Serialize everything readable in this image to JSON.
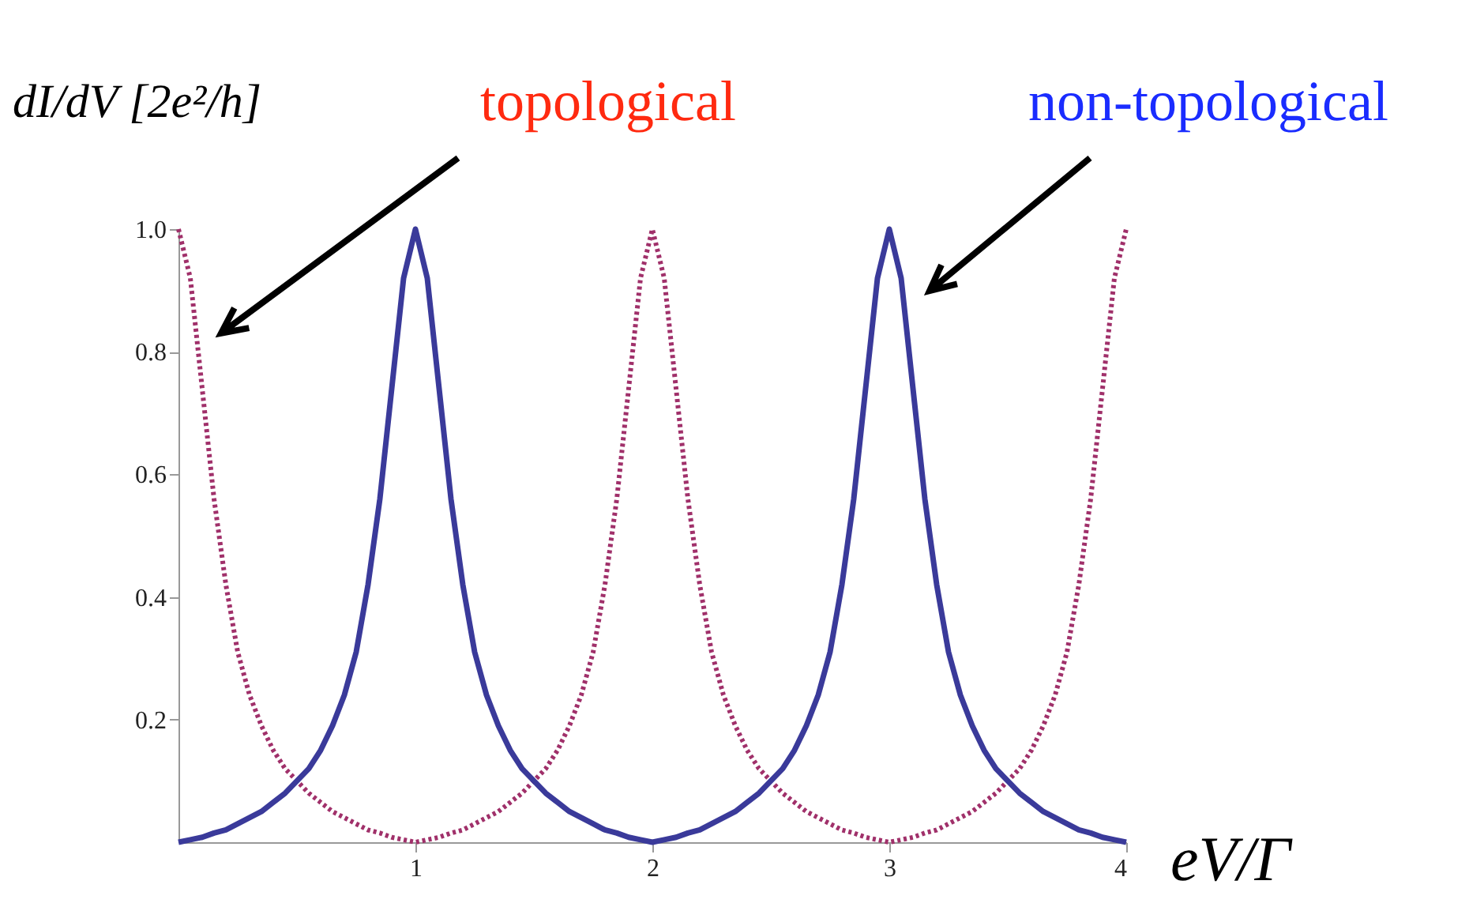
{
  "chart_data": {
    "type": "line",
    "ylabel": "dI/dV [2e²/h]",
    "xlabel": "eV/Γ",
    "x": [
      0,
      0.05,
      0.1,
      0.15,
      0.2,
      0.25,
      0.3,
      0.35,
      0.4,
      0.45,
      0.5,
      0.55,
      0.6,
      0.65,
      0.7,
      0.75,
      0.8,
      0.85,
      0.9,
      0.95,
      1,
      1.05,
      1.1,
      1.15,
      1.2,
      1.25,
      1.3,
      1.35,
      1.4,
      1.45,
      1.5,
      1.55,
      1.6,
      1.65,
      1.7,
      1.75,
      1.8,
      1.85,
      1.9,
      1.95,
      2,
      2.05,
      2.1,
      2.15,
      2.2,
      2.25,
      2.3,
      2.35,
      2.4,
      2.45,
      2.5,
      2.55,
      2.6,
      2.65,
      2.7,
      2.75,
      2.8,
      2.85,
      2.9,
      2.95,
      3,
      3.05,
      3.1,
      3.15,
      3.2,
      3.25,
      3.3,
      3.35,
      3.4,
      3.45,
      3.5,
      3.55,
      3.6,
      3.65,
      3.7,
      3.75,
      3.8,
      3.85,
      3.9,
      3.95,
      4
    ],
    "series": [
      {
        "name": "topological",
        "color": "#a0306a",
        "line_style": "dotted",
        "values": [
          1,
          0.92,
          0.74,
          0.56,
          0.42,
          0.31,
          0.24,
          0.19,
          0.15,
          0.12,
          0.1,
          0.08,
          0.065,
          0.05,
          0.04,
          0.03,
          0.02,
          0.015,
          0.008,
          0.004,
          0,
          0.004,
          0.008,
          0.015,
          0.02,
          0.03,
          0.04,
          0.05,
          0.065,
          0.08,
          0.1,
          0.12,
          0.15,
          0.19,
          0.24,
          0.31,
          0.42,
          0.56,
          0.74,
          0.92,
          1,
          0.92,
          0.74,
          0.56,
          0.42,
          0.31,
          0.24,
          0.19,
          0.15,
          0.12,
          0.1,
          0.08,
          0.065,
          0.05,
          0.04,
          0.03,
          0.02,
          0.015,
          0.008,
          0.004,
          0,
          0.004,
          0.008,
          0.015,
          0.02,
          0.03,
          0.04,
          0.05,
          0.065,
          0.08,
          0.1,
          0.12,
          0.15,
          0.19,
          0.24,
          0.31,
          0.42,
          0.56,
          0.74,
          0.92,
          1
        ]
      },
      {
        "name": "non-topological",
        "color": "#3a3a9a",
        "line_style": "solid",
        "values": [
          0,
          0.004,
          0.008,
          0.015,
          0.02,
          0.03,
          0.04,
          0.05,
          0.065,
          0.08,
          0.1,
          0.12,
          0.15,
          0.19,
          0.24,
          0.31,
          0.42,
          0.56,
          0.74,
          0.92,
          1,
          0.92,
          0.74,
          0.56,
          0.42,
          0.31,
          0.24,
          0.19,
          0.15,
          0.12,
          0.1,
          0.08,
          0.065,
          0.05,
          0.04,
          0.03,
          0.02,
          0.015,
          0.008,
          0.004,
          0,
          0.004,
          0.008,
          0.015,
          0.02,
          0.03,
          0.04,
          0.05,
          0.065,
          0.08,
          0.1,
          0.12,
          0.15,
          0.19,
          0.24,
          0.31,
          0.42,
          0.56,
          0.74,
          0.92,
          1,
          0.92,
          0.74,
          0.56,
          0.42,
          0.31,
          0.24,
          0.19,
          0.15,
          0.12,
          0.1,
          0.08,
          0.065,
          0.05,
          0.04,
          0.03,
          0.02,
          0.015,
          0.008,
          0.004,
          0
        ]
      }
    ],
    "xlim": [
      0,
      4
    ],
    "ylim": [
      0,
      1
    ],
    "xticks": [
      1,
      2,
      3,
      4
    ],
    "yticks": [
      0.2,
      0.4,
      0.6,
      0.8,
      {
        "value": 1,
        "label": "1.0"
      }
    ],
    "grid": false
  }
}
